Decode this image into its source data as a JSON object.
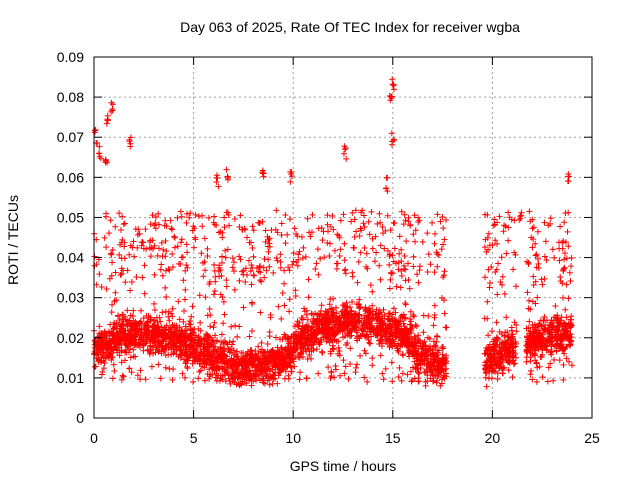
{
  "chart_data": {
    "type": "scatter",
    "title": "Day 063 of 2025, Rate Of TEC Index for receiver wgba",
    "xlabel": "GPS time / hours",
    "ylabel": "ROTI / TECUs",
    "xlim": [
      0,
      25
    ],
    "ylim": [
      0,
      0.09
    ],
    "xticks": [
      "0",
      "5",
      "10",
      "15",
      "20",
      "25"
    ],
    "yticks": [
      "0",
      "0.01",
      "0.02",
      "0.03",
      "0.04",
      "0.05",
      "0.06",
      "0.07",
      "0.08",
      "0.09"
    ],
    "grid": true,
    "marker": "plus",
    "color": "#ff0000",
    "data_segments": [
      {
        "x_start": 0.0,
        "x_end": 17.7
      },
      {
        "x_start": 19.6,
        "x_end": 21.2
      },
      {
        "x_start": 21.7,
        "x_end": 24.0
      }
    ],
    "typical_range": [
      0.005,
      0.035
    ],
    "peaks": [
      {
        "x": 0.1,
        "y": 0.072
      },
      {
        "x": 0.3,
        "y": 0.068
      },
      {
        "x": 0.7,
        "y": 0.076
      },
      {
        "x": 0.9,
        "y": 0.079
      },
      {
        "x": 1.8,
        "y": 0.07
      },
      {
        "x": 0.6,
        "y": 0.065
      },
      {
        "x": 6.2,
        "y": 0.061
      },
      {
        "x": 6.7,
        "y": 0.062
      },
      {
        "x": 8.5,
        "y": 0.063
      },
      {
        "x": 9.9,
        "y": 0.062
      },
      {
        "x": 12.6,
        "y": 0.068
      },
      {
        "x": 14.7,
        "y": 0.06
      },
      {
        "x": 14.9,
        "y": 0.081
      },
      {
        "x": 15.0,
        "y": 0.085
      },
      {
        "x": 15.0,
        "y": 0.071
      },
      {
        "x": 21.4,
        "y": 0.052
      },
      {
        "x": 23.8,
        "y": 0.061
      }
    ]
  }
}
